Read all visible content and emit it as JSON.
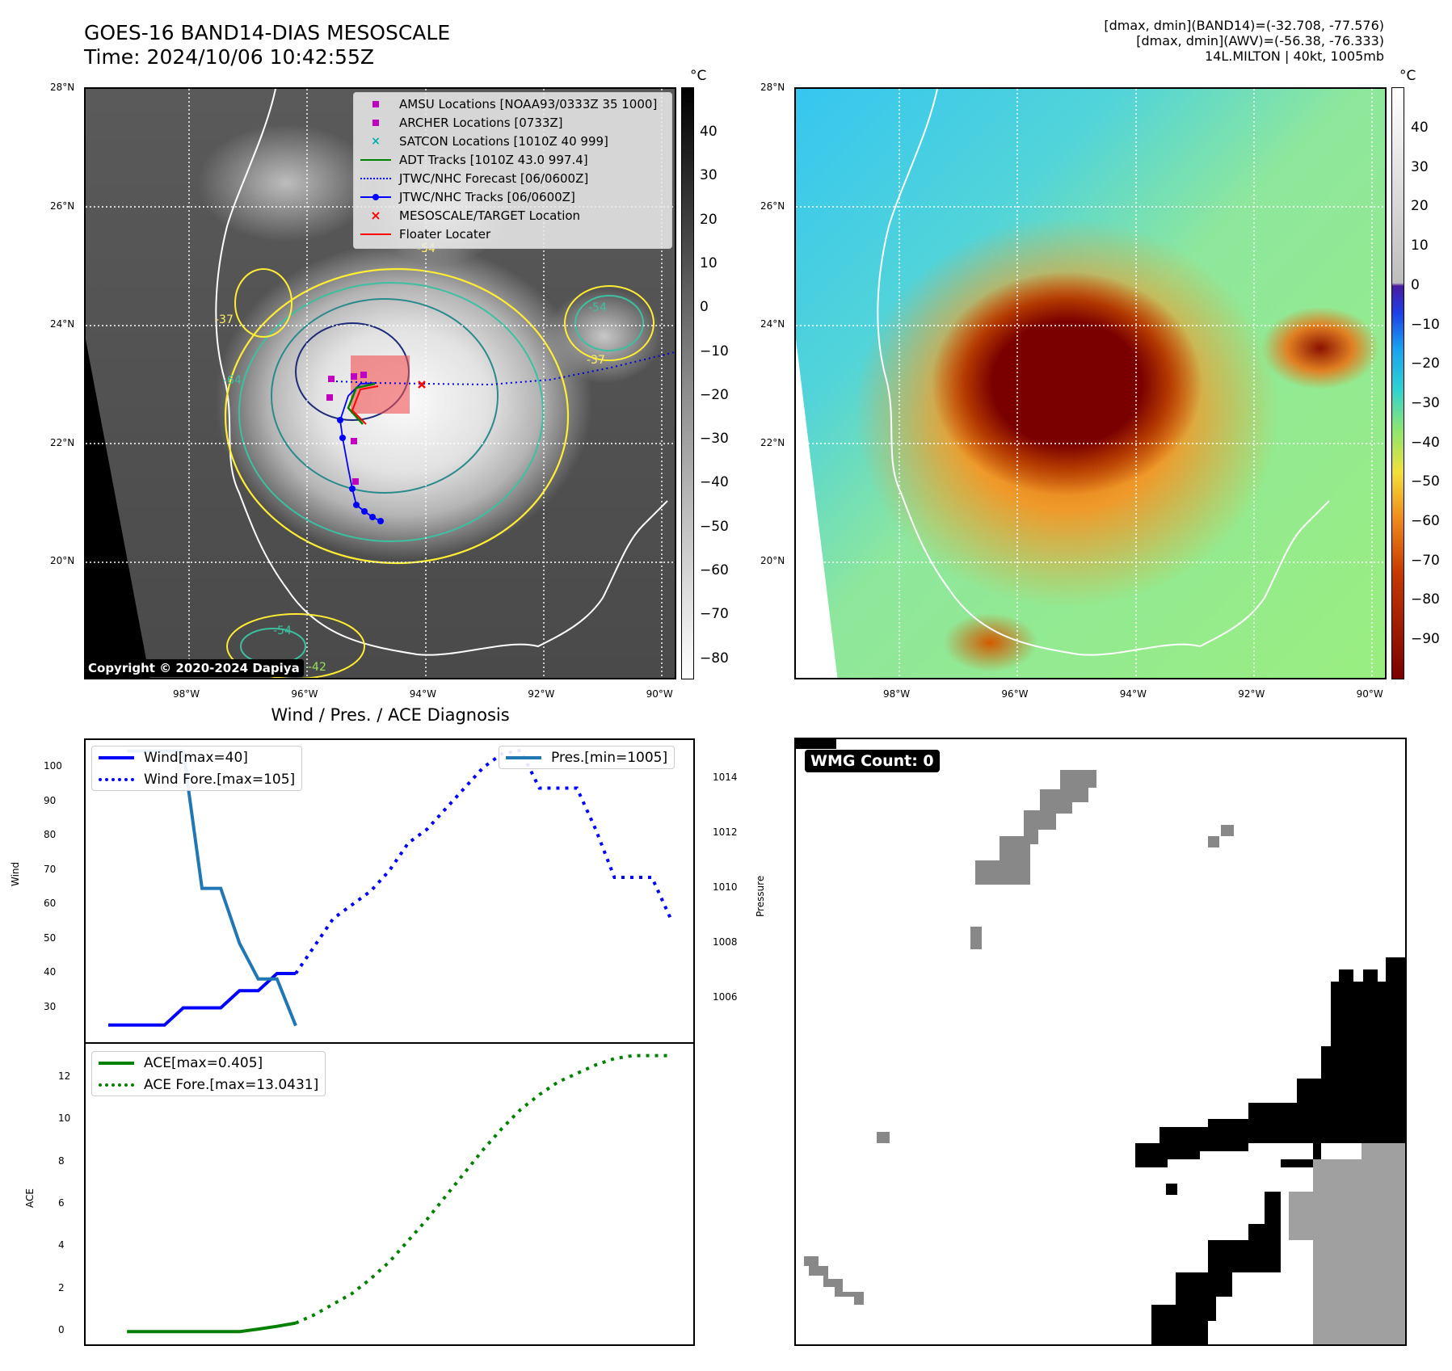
{
  "header": {
    "title_line1": "GOES-16 BAND14-DIAS MESOSCALE",
    "title_line2": "Time: 2024/10/06 10:42:55Z",
    "info_line1": "[dmax, dmin](BAND14)=(-32.708, -77.576)",
    "info_line2": "[dmax, dmin](AWV)=(-56.38, -76.333)",
    "info_line3": "14L.MILTON | 40kt, 1005mb"
  },
  "maps": {
    "lat_labels": [
      "28°N",
      "26°N",
      "24°N",
      "22°N",
      "20°N"
    ],
    "lon_labels": [
      "98°W",
      "96°W",
      "94°W",
      "92°W",
      "90°W"
    ],
    "colorbar_unit": "°C",
    "ir_colorbar_ticks": [
      "40",
      "30",
      "20",
      "10",
      "0",
      "−10",
      "−20",
      "−30",
      "−40",
      "−50",
      "−60",
      "−70",
      "−80"
    ],
    "color_colorbar_ticks": [
      "40",
      "30",
      "20",
      "10",
      "0",
      "−10",
      "−20",
      "−30",
      "−40",
      "−50",
      "−60",
      "−70",
      "−80",
      "−90"
    ],
    "contour_labels": [
      "-54",
      "-37",
      "-54",
      "-37",
      "-42",
      "-54",
      "-64"
    ],
    "copyright": "Copyright © 2020-2024 Dapiya",
    "legend": [
      {
        "label": "AMSU Locations [NOAA93/0333Z 35 1000]",
        "symbol": "square",
        "color": "#c000c0"
      },
      {
        "label": "ARCHER Locations [0733Z]",
        "symbol": "square",
        "color": "#c000c0"
      },
      {
        "label": "SATCON Locations [1010Z 40 999]",
        "symbol": "x",
        "color": "#00b0b0"
      },
      {
        "label": "ADT Tracks [1010Z 43.0 997.4]",
        "symbol": "line",
        "color": "#008000"
      },
      {
        "label": "JTWC/NHC Forecast [06/0600Z]",
        "symbol": "dotted",
        "color": "#0000ff"
      },
      {
        "label": "JTWC/NHC Tracks [06/0600Z]",
        "symbol": "line-dot",
        "color": "#0000ff"
      },
      {
        "label": "MESOSCALE/TARGET Location",
        "symbol": "x",
        "color": "#ff0000"
      },
      {
        "label": "Floater Locater",
        "symbol": "line",
        "color": "#ff0000"
      }
    ]
  },
  "diagnosis": {
    "title": "Wind / Pres. / ACE Diagnosis",
    "wind_ylabel": "Wind",
    "pressure_ylabel": "Pressure",
    "ace_ylabel": "ACE",
    "wind_ticks": [
      "100",
      "90",
      "80",
      "70",
      "60",
      "50",
      "40",
      "30"
    ],
    "pressure_ticks": [
      "1014",
      "1012",
      "1010",
      "1008",
      "1006"
    ],
    "ace_ticks": [
      "12",
      "10",
      "8",
      "6",
      "4",
      "2",
      "0"
    ],
    "legend_wind": "Wind[max=40]",
    "legend_wind_fore": "Wind Fore.[max=105]",
    "legend_pres": "Pres.[min=1005]",
    "legend_ace": "ACE[max=0.405]",
    "legend_ace_fore": "ACE Fore.[max=13.0431]"
  },
  "wmg": {
    "badge": "WMG Count: 0"
  },
  "chart_data": [
    {
      "type": "line",
      "title": "Wind / Pres. / ACE Diagnosis",
      "ylabel": "Wind",
      "ylim": [
        20,
        108
      ],
      "series": [
        {
          "name": "Wind[max=40]",
          "color": "#0000ff",
          "style": "solid",
          "x": [
            0,
            1,
            2,
            3,
            4,
            5,
            6,
            7,
            8,
            9,
            10
          ],
          "y": [
            25,
            25,
            25,
            25,
            30,
            30,
            30,
            35,
            35,
            40,
            40
          ]
        },
        {
          "name": "Wind Fore.[max=105]",
          "color": "#0000ff",
          "style": "dotted",
          "x": [
            10,
            11,
            12,
            13,
            14,
            15,
            16,
            17,
            18,
            19,
            20,
            21,
            22,
            23,
            24,
            25,
            26,
            27,
            28,
            29,
            30
          ],
          "y": [
            40,
            48,
            56,
            60,
            64,
            70,
            78,
            82,
            88,
            94,
            100,
            104,
            105,
            94,
            94,
            94,
            82,
            68,
            68,
            68,
            56
          ]
        }
      ]
    },
    {
      "type": "line",
      "ylabel": "Pressure",
      "ylim": [
        1004.4,
        1015.4
      ],
      "series": [
        {
          "name": "Pres.[min=1005]",
          "color": "#1f77b4",
          "style": "solid",
          "x": [
            1,
            2,
            3,
            4,
            5,
            6,
            7,
            8,
            9,
            10
          ],
          "y": [
            1015,
            1015,
            1015,
            1015,
            1010,
            1010,
            1008,
            1006.7,
            1006.7,
            1005
          ]
        }
      ]
    },
    {
      "type": "line",
      "ylabel": "ACE",
      "ylim": [
        -0.6,
        13.6
      ],
      "series": [
        {
          "name": "ACE[max=0.405]",
          "color": "#008000",
          "style": "solid",
          "x": [
            1,
            2,
            3,
            4,
            5,
            6,
            7,
            8,
            9,
            10
          ],
          "y": [
            0,
            0,
            0,
            0,
            0,
            0,
            0,
            0.12,
            0.25,
            0.405
          ]
        },
        {
          "name": "ACE Fore.[max=13.0431]",
          "color": "#008000",
          "style": "dotted",
          "x": [
            10,
            11,
            12,
            13,
            14,
            15,
            16,
            17,
            18,
            19,
            20,
            21,
            22,
            23,
            24,
            25,
            26,
            27,
            28,
            29,
            30
          ],
          "y": [
            0.405,
            0.8,
            1.3,
            1.8,
            2.5,
            3.3,
            4.3,
            5.3,
            6.4,
            7.5,
            8.6,
            9.6,
            10.5,
            11.2,
            11.8,
            12.2,
            12.6,
            12.9,
            13.0431,
            13.0431,
            13.0431
          ]
        }
      ]
    }
  ]
}
